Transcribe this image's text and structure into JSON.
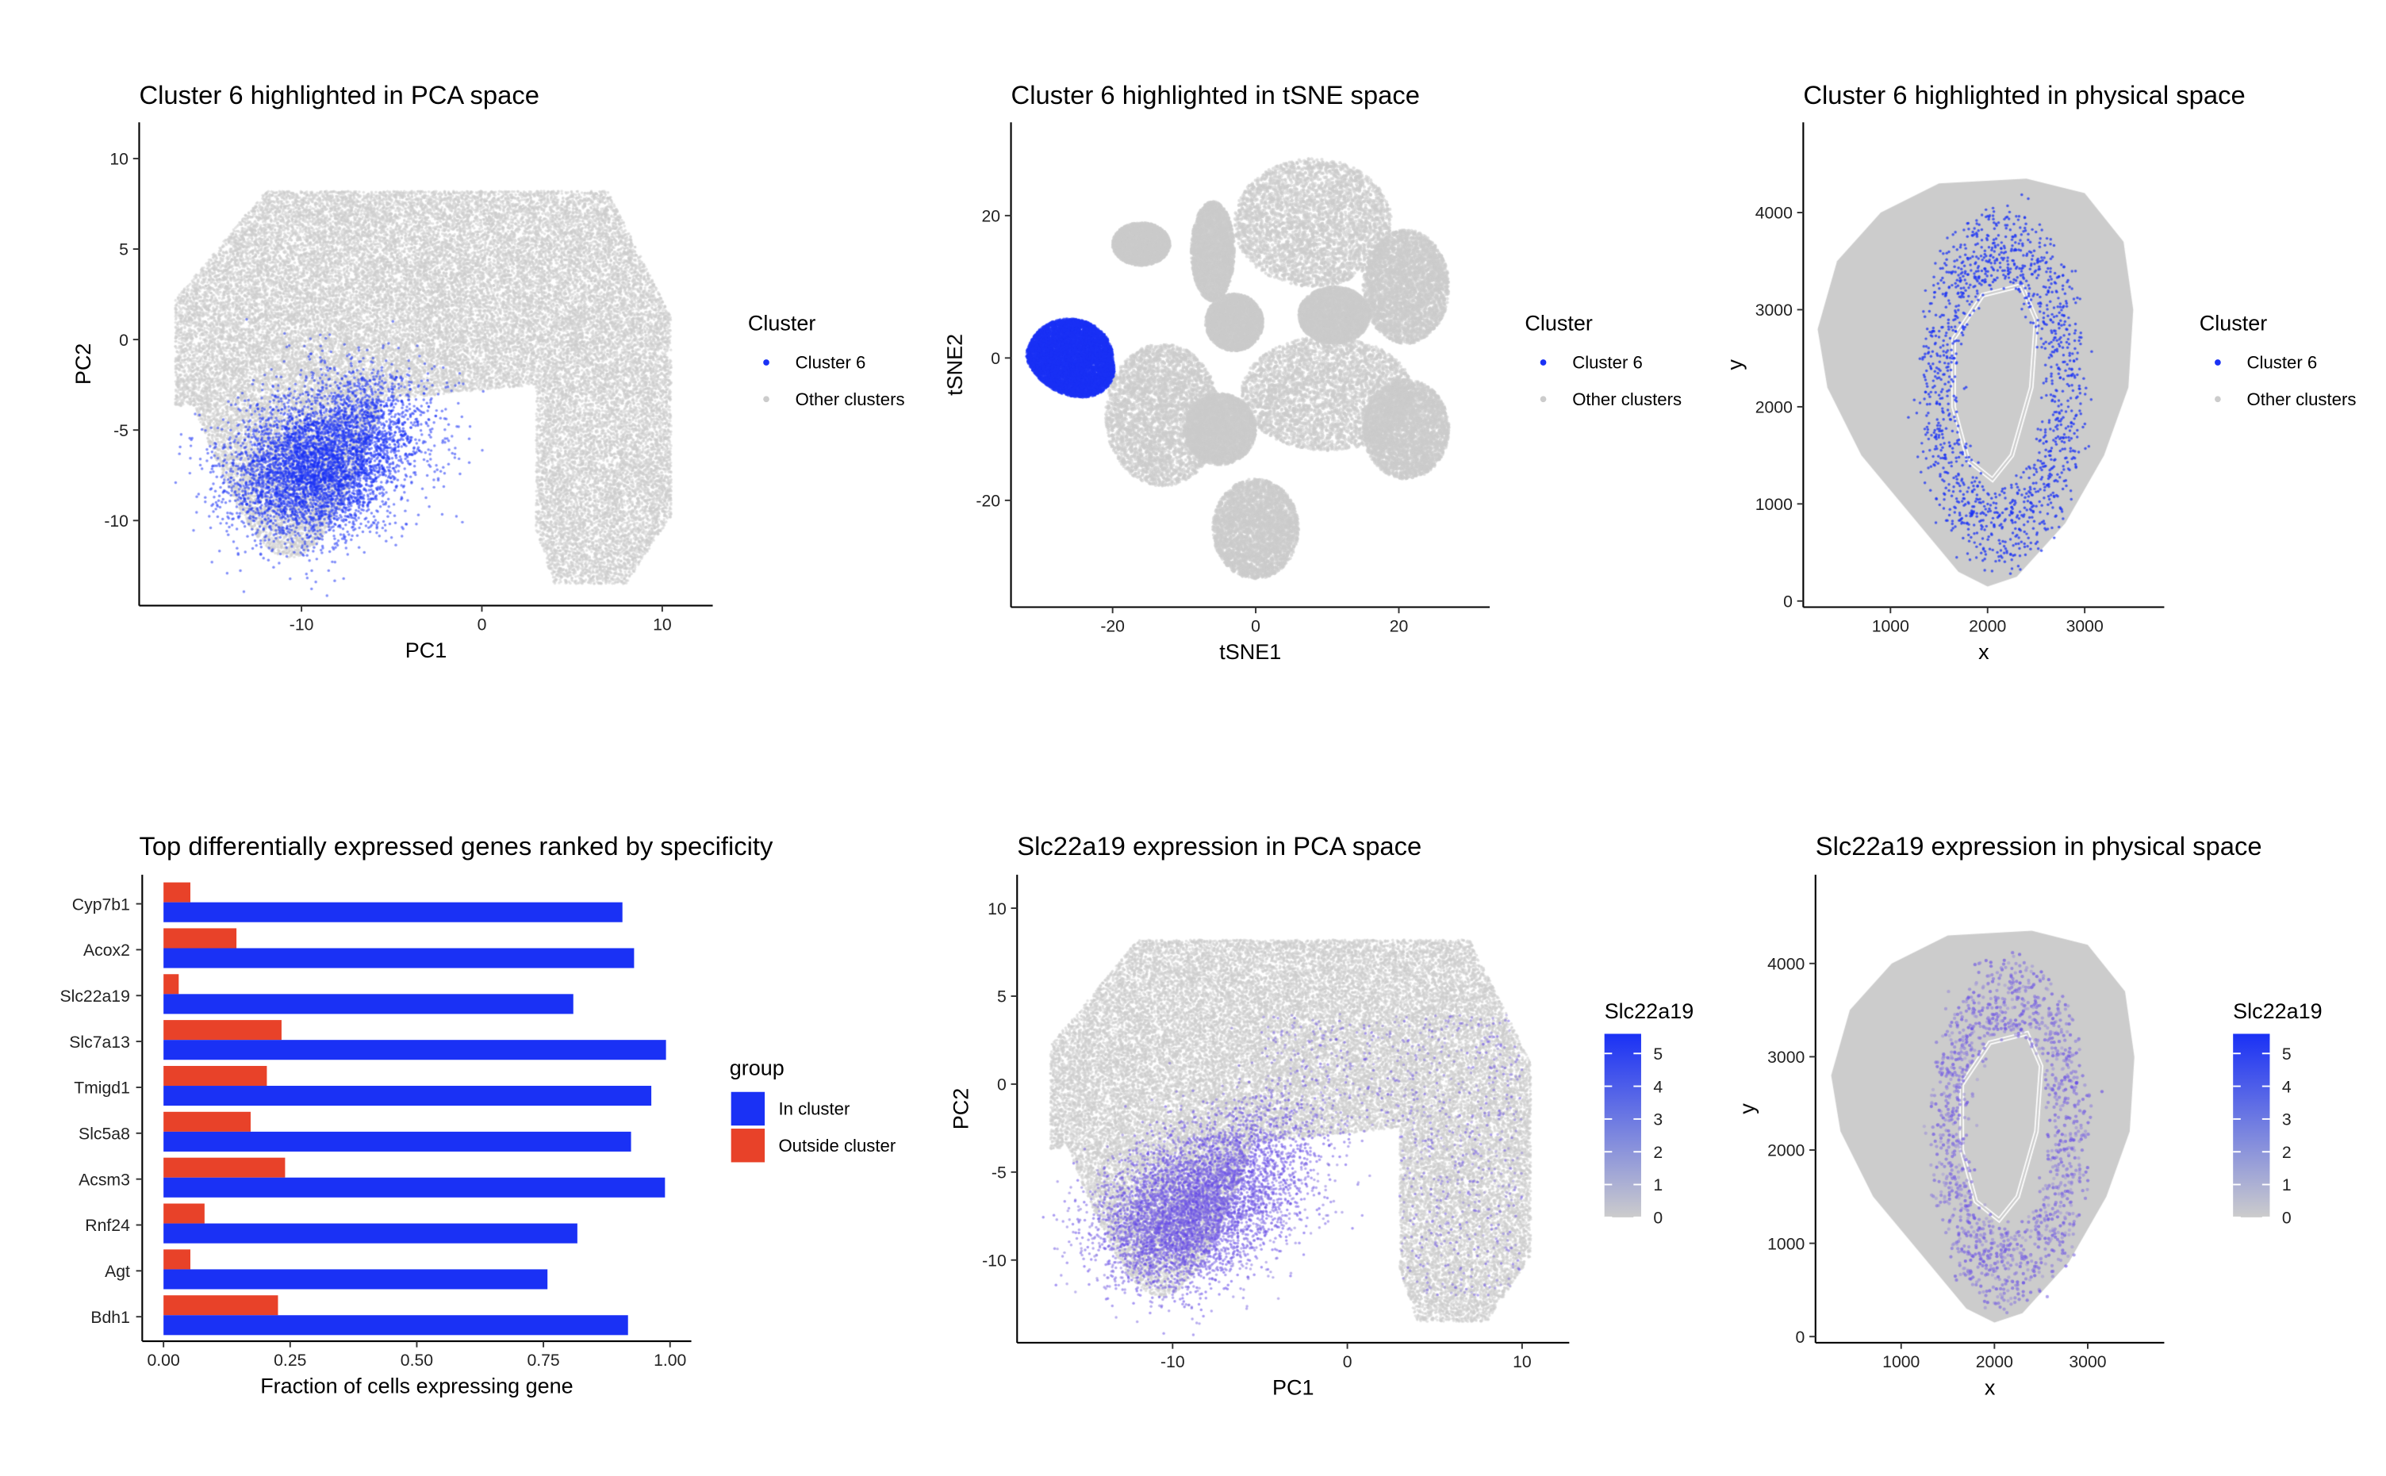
{
  "colors": {
    "highlight": "#1a31f5",
    "other": "#cccccc",
    "in_cluster": "#1a31f5",
    "outside_cluster": "#e84229",
    "gradient_high": "#1a31f5",
    "gradient_low": "#cccccc"
  },
  "chart_data": [
    {
      "id": "pca",
      "type": "scatter",
      "title": "Cluster 6 highlighted in PCA space",
      "xlabel": "PC1",
      "ylabel": "PC2",
      "xlim": [
        -19,
        12.8
      ],
      "ylim": [
        -14.7,
        12
      ],
      "xticks": [
        -10,
        0,
        10
      ],
      "yticks": [
        -10,
        -5,
        0,
        5,
        10
      ],
      "legend": {
        "title": "Cluster",
        "position": "right",
        "entries": [
          {
            "label": "Cluster 6",
            "color": "#1a31f5"
          },
          {
            "label": "Other clusters",
            "color": "#cccccc"
          }
        ]
      }
    },
    {
      "id": "tsne",
      "type": "scatter",
      "title": "Cluster 6 highlighted in tSNE space",
      "xlabel": "tSNE1",
      "ylabel": "tSNE2",
      "xlim": [
        -34.2,
        32.7
      ],
      "ylim": [
        -35,
        33.1
      ],
      "xticks": [
        -20,
        0,
        20
      ],
      "yticks": [
        -20,
        0,
        20
      ],
      "legend": {
        "title": "Cluster",
        "position": "right",
        "entries": [
          {
            "label": "Cluster 6",
            "color": "#1a31f5"
          },
          {
            "label": "Other clusters",
            "color": "#cccccc"
          }
        ]
      }
    },
    {
      "id": "phys",
      "type": "scatter",
      "title": "Cluster 6 highlighted in physical space",
      "xlabel": "x",
      "ylabel": "y",
      "xlim": [
        102,
        3819
      ],
      "ylim": [
        -63,
        4929
      ],
      "xticks": [
        1000,
        2000,
        3000
      ],
      "yticks": [
        0,
        1000,
        2000,
        3000,
        4000
      ],
      "legend": {
        "title": "Cluster",
        "position": "right",
        "entries": [
          {
            "label": "Cluster 6",
            "color": "#1a31f5"
          },
          {
            "label": "Other clusters",
            "color": "#cccccc"
          }
        ]
      }
    },
    {
      "id": "bar",
      "type": "bar",
      "orientation": "horizontal",
      "title": "Top differentially expressed genes ranked by specificity",
      "xlabel": "Fraction of cells expressing gene",
      "ylabel": "",
      "xlim": [
        -0.042,
        1.042
      ],
      "xticks": [
        "0.00",
        "0.25",
        "0.50",
        "0.75",
        "1.00"
      ],
      "categories": [
        "Cyp7b1",
        "Acox2",
        "Slc22a19",
        "Slc7a13",
        "Tmigd1",
        "Slc5a8",
        "Acsm3",
        "Rnf24",
        "Agt",
        "Bdh1"
      ],
      "series": [
        {
          "name": "In cluster",
          "color": "#1a31f5",
          "values": [
            0.906,
            0.929,
            0.809,
            0.992,
            0.963,
            0.923,
            0.99,
            0.817,
            0.758,
            0.917
          ]
        },
        {
          "name": "Outside cluster",
          "color": "#e84229",
          "values": [
            0.053,
            0.144,
            0.03,
            0.233,
            0.204,
            0.172,
            0.24,
            0.081,
            0.053,
            0.226
          ]
        }
      ],
      "legend": {
        "title": "group",
        "position": "right"
      }
    },
    {
      "id": "pca_expr",
      "type": "scatter",
      "title": "Slc22a19 expression in PCA space",
      "xlabel": "PC1",
      "ylabel": "PC2",
      "xlim": [
        -18.9,
        12.7
      ],
      "ylim": [
        -14.7,
        11.9
      ],
      "xticks": [
        -10,
        0,
        10
      ],
      "yticks": [
        -10,
        -5,
        0,
        5,
        10
      ],
      "colorbar": {
        "title": "Slc22a19",
        "ticks": [
          0,
          1,
          2,
          3,
          4,
          5
        ],
        "range": [
          0,
          5.6
        ]
      }
    },
    {
      "id": "phys_expr",
      "type": "scatter",
      "title": "Slc22a19 expression in physical space",
      "xlabel": "x",
      "ylabel": "y",
      "xlim": [
        82,
        3820
      ],
      "ylim": [
        -66,
        4951
      ],
      "xticks": [
        1000,
        2000,
        3000
      ],
      "yticks": [
        0,
        1000,
        2000,
        3000,
        4000
      ],
      "colorbar": {
        "title": "Slc22a19",
        "ticks": [
          0,
          1,
          2,
          3,
          4,
          5
        ],
        "range": [
          0,
          5.6
        ]
      }
    }
  ]
}
